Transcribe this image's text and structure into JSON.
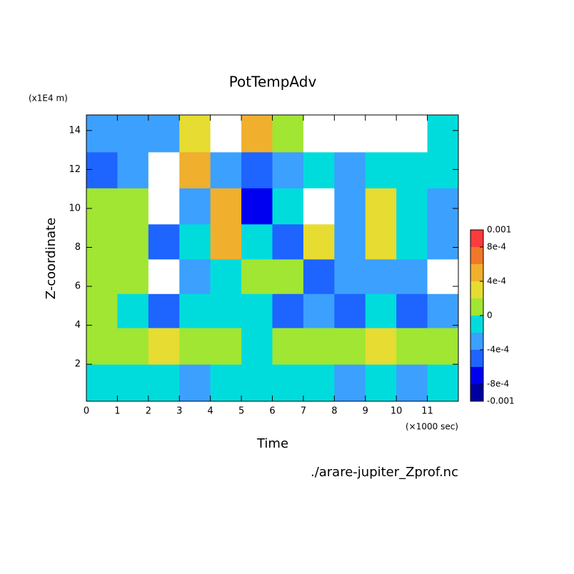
{
  "chart_data": {
    "type": "contour",
    "title": "PotTempAdv",
    "x_label": "Time",
    "x_unit": "(×1000 sec)",
    "y_label": "Z-coordinate",
    "y_unit": "(x1E4 m)",
    "source": "./arare-jupiter_Zprof.nc",
    "xlim": [
      0,
      12
    ],
    "ylim": [
      0.1,
      14.8
    ],
    "xticks": [
      0,
      1,
      2,
      3,
      4,
      5,
      6,
      7,
      8,
      9,
      10,
      11
    ],
    "yticks": [
      2,
      4,
      6,
      8,
      10,
      12,
      14
    ],
    "x": [
      0.5,
      1.5,
      2.5,
      3.5,
      4.5,
      5.5,
      6.5,
      7.5,
      8.5,
      9.5,
      10.5,
      11.5
    ],
    "y": [
      1,
      3,
      4.75,
      6.5,
      8.3,
      10.1,
      12,
      13.8
    ],
    "z": [
      [
        -0.0001,
        -0.0001,
        -0.0001,
        -0.0003,
        -0.0001,
        -0.0001,
        -0.0001,
        -0.0001,
        -0.0003,
        -0.0001,
        -0.0003,
        -0.0001
      ],
      [
        0.0001,
        0.0001,
        0.0003,
        0.0001,
        0.0001,
        -0.0001,
        0.0001,
        0.0001,
        0.0001,
        0.0003,
        0.0001,
        0.0001
      ],
      [
        0.0001,
        -0.0001,
        -0.0005,
        -0.0001,
        -0.0001,
        -0.0001,
        -0.0005,
        -0.0003,
        -0.0005,
        -0.0001,
        -0.0005,
        -0.0003
      ],
      [
        0.0001,
        0.0001,
        0.0012,
        -0.0003,
        -0.0001,
        0.0001,
        0.0001,
        -0.0005,
        -0.0003,
        -0.0003,
        -0.0003,
        0.0012
      ],
      [
        0.0001,
        0.0001,
        -0.0005,
        -0.0001,
        0.0005,
        -0.0001,
        -0.0005,
        0.0003,
        -0.0003,
        0.0003,
        -0.0001,
        -0.0003
      ],
      [
        0.0001,
        0.0001,
        0.0012,
        -0.0003,
        0.0005,
        -0.0007,
        -0.0001,
        0.0012,
        -0.0003,
        0.0003,
        -0.0001,
        -0.0003
      ],
      [
        -0.0005,
        -0.0003,
        0.0012,
        0.0005,
        -0.0003,
        -0.0005,
        -0.0003,
        -0.0001,
        -0.0003,
        -0.0001,
        -0.0001,
        -0.0001
      ],
      [
        -0.0003,
        -0.0003,
        -0.0003,
        0.0003,
        0.0012,
        0.0005,
        0.0001,
        0.0012,
        0.0012,
        0.0012,
        0.0012,
        -0.0001
      ]
    ],
    "colorbar": {
      "levels": [
        -0.001,
        -0.0008,
        -0.0006,
        -0.0004,
        -0.0002,
        0,
        0.0002,
        0.0004,
        0.0006,
        0.0008,
        0.001
      ],
      "colors": [
        "#0000a0",
        "#0000f0",
        "#1e64ff",
        "#3ca0ff",
        "#00dcdc",
        "#a0e632",
        "#e6dc32",
        "#f0af2d",
        "#f07828",
        "#fa3c3c"
      ],
      "out_of_range_color": "#ffffff",
      "ticks": [
        0.001,
        {
          "value": 0.0008,
          "label": "8e-4"
        },
        {
          "value": 0.0004,
          "label": "4e-4"
        },
        0,
        {
          "value": -0.0004,
          "label": "-4e-4"
        },
        {
          "value": -0.0008,
          "label": "-8e-4"
        },
        -0.001
      ]
    }
  }
}
